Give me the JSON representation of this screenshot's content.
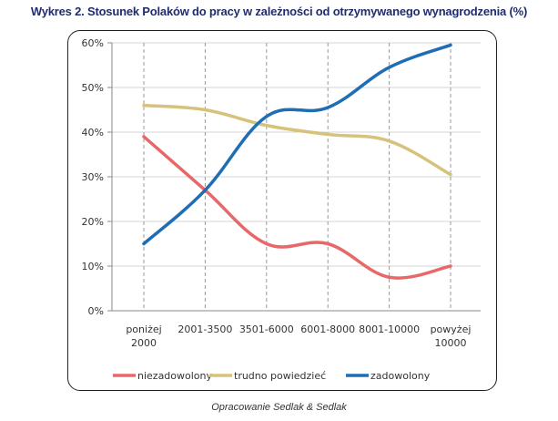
{
  "chart_data": {
    "type": "line",
    "title": "Wykres 2. Stosunek Polaków do pracy w zależności od otrzymywanego wynagrodzenia (%)",
    "xlabel": "",
    "ylabel": "",
    "categories": [
      [
        "poniżej",
        "2000"
      ],
      [
        "2001-3500"
      ],
      [
        "3501-6000"
      ],
      [
        "6001-8000"
      ],
      [
        "8001-10000"
      ],
      [
        "powyżej",
        "10000"
      ]
    ],
    "yticks": [
      "0%",
      "10%",
      "20%",
      "30%",
      "40%",
      "50%",
      "60%"
    ],
    "ylim": [
      0,
      60
    ],
    "grid": true,
    "legend_position": "bottom",
    "series": [
      {
        "name": "niezadowolony",
        "color": "#e8686a",
        "values": [
          39,
          27,
          15,
          15,
          7.5,
          10
        ]
      },
      {
        "name": "trudno powiedzieć",
        "color": "#d6c27a",
        "values": [
          46,
          45,
          41.5,
          39.5,
          38,
          30.5
        ]
      },
      {
        "name": "zadowolony",
        "color": "#1f6db4",
        "values": [
          15,
          27,
          43.5,
          45.5,
          54.5,
          59.5
        ]
      }
    ],
    "source": "Opracowanie Sedlak & Sedlak"
  }
}
